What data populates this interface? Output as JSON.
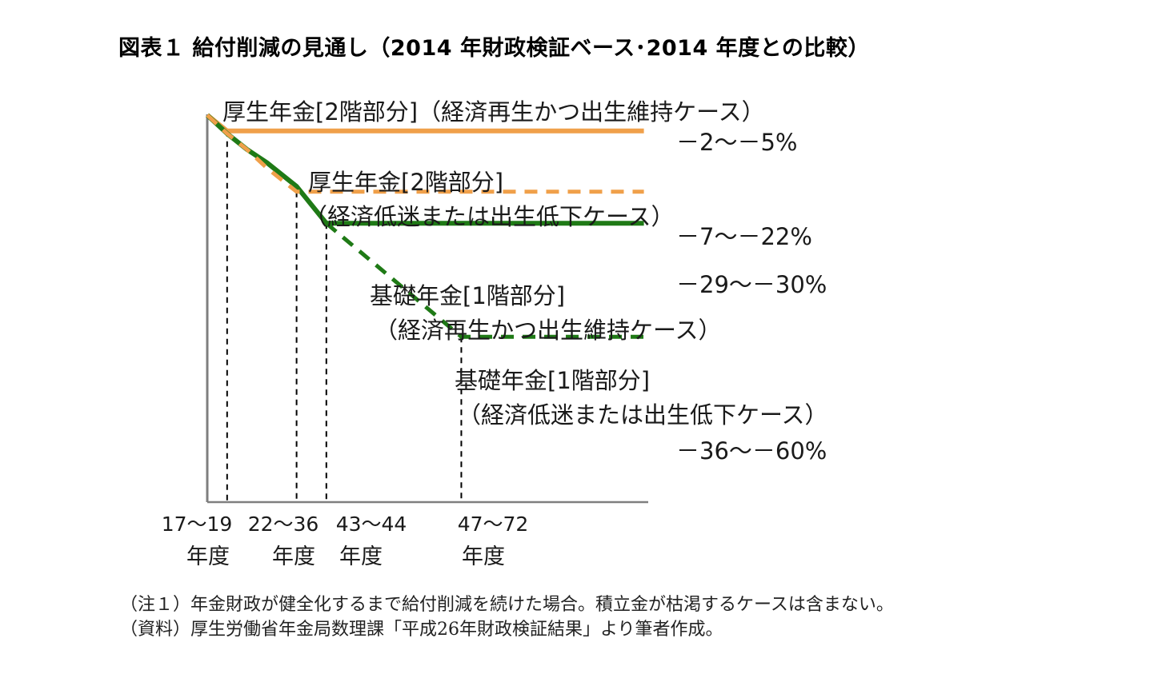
{
  "title": "図表１ 給付削減の見通し（2014 年財政検証ベース･2014 年度との比較）",
  "notes": [
    "（注１）年金財政が健全化するまで給付削減を続けた場合。積立金が枯渇するケースは含まない。",
    "（資料）厚生労働省年金局数理課「平成26年財政検証結果」より筆者作成。"
  ],
  "colors": {
    "orange": "#F0A04A",
    "green": "#1F7A16",
    "axis": "#7f7f7f"
  },
  "chart_data": {
    "type": "line",
    "x_ticks": [
      "17～19",
      "22～36",
      "43～44",
      "47～72"
    ],
    "x_tick_unit": "年度",
    "series": [
      {
        "name": "厚生年金[2階部分]（経済再生かつ出生維持ケース）",
        "label_lines": [
          "厚生年金[2階部分]（経済再生かつ出生維持ケース）"
        ],
        "range_label": "－2～－5%",
        "color": "orange",
        "dashed": false,
        "points": [
          [
            0,
            0
          ],
          [
            1,
            -6
          ]
        ],
        "end_x": 22,
        "end_y": -6
      },
      {
        "name": "厚生年金[2階部分]（経済低迷または出生低下ケース）",
        "label_lines": [
          "厚生年金[2階部分]",
          "（経済低迷または出生低下ケース）"
        ],
        "range_label": "－7～－22%",
        "color": "orange",
        "dashed": true,
        "points": [
          [
            0,
            0
          ],
          [
            1,
            -7
          ],
          [
            2,
            -13
          ],
          [
            3,
            -20
          ],
          [
            4.5,
            -29
          ]
        ],
        "end_x": 22,
        "end_y": -29
      },
      {
        "name": "基礎年金[1階部分]（経済再生かつ出生維持ケース）",
        "label_lines": [
          "基礎年金[1階部分]",
          "（経済再生かつ出生維持ケース）"
        ],
        "range_label": "－29～－30%",
        "color": "green",
        "dashed": false,
        "points": [
          [
            0,
            0
          ],
          [
            1,
            -7
          ],
          [
            2,
            -13
          ],
          [
            3,
            -18
          ],
          [
            4.5,
            -27
          ],
          [
            6,
            -41
          ]
        ],
        "end_x": 22,
        "end_y": -41
      },
      {
        "name": "基礎年金[1階部分]（経済低迷または出生低下ケース）",
        "label_lines": [
          "基礎年金[1階部分]",
          "（経済低迷または出生低下ケース）"
        ],
        "range_label": "－36～－60%",
        "color": "green",
        "dashed": true,
        "points": [
          [
            6,
            -41
          ],
          [
            12.8,
            -84
          ]
        ],
        "end_x": 22,
        "end_y": -84
      }
    ]
  }
}
